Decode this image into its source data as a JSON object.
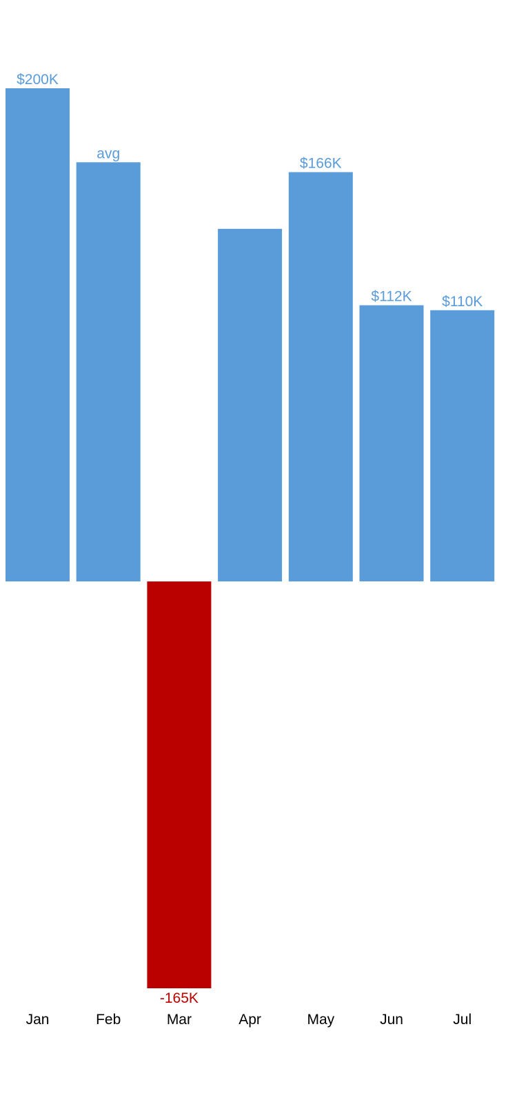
{
  "chart_data": {
    "type": "bar",
    "title": "",
    "xlabel": "",
    "ylabel": "",
    "categories": [
      "Jan",
      "Feb",
      "Mar",
      "Apr",
      "May",
      "Jun",
      "Jul"
    ],
    "values": [
      200,
      170,
      -165,
      143,
      166,
      112,
      110
    ],
    "data_labels": [
      "$200K",
      "avg",
      "-165K",
      "",
      "$166K",
      "$112K",
      "$110K"
    ],
    "ylim": [
      -165,
      200
    ],
    "grid": false,
    "legend": "none",
    "colors": {
      "positive": "#5a9bd9",
      "negative": "#bb0000",
      "tick_text": "#000000"
    }
  }
}
